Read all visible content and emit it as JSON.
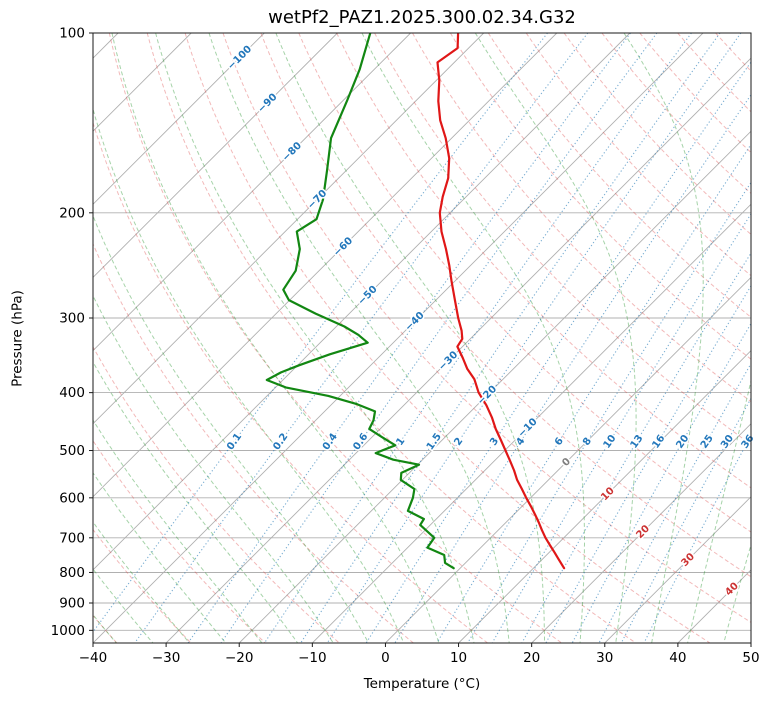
{
  "chart_data": {
    "type": "line",
    "variant": "skew-T log-P thermodynamic diagram",
    "title": "wetPf2_PAZ1.2025.300.02.34.G32",
    "xlabel": "Temperature (°C)",
    "ylabel": "Pressure (hPa)",
    "xlim": [
      -40,
      50
    ],
    "x_ticks": [
      -40,
      -30,
      -20,
      -10,
      0,
      10,
      20,
      30,
      40,
      50
    ],
    "p_lim": [
      1050,
      100
    ],
    "p_ticks": [
      100,
      200,
      300,
      400,
      500,
      600,
      700,
      800,
      900,
      1000
    ],
    "skew_deg": 45,
    "grid": true,
    "grid_color": "#b0b0b0",
    "series": [
      {
        "name": "temperature",
        "color": "#e01717",
        "width": 2.2,
        "points": [
          [
            100,
            -73.5
          ],
          [
            106,
            -71.5
          ],
          [
            112,
            -72.3
          ],
          [
            120,
            -69.6
          ],
          [
            130,
            -66.9
          ],
          [
            140,
            -64.0
          ],
          [
            150,
            -60.8
          ],
          [
            162,
            -57.6
          ],
          [
            175,
            -55.0
          ],
          [
            188,
            -53.2
          ],
          [
            200,
            -51.4
          ],
          [
            215,
            -48.6
          ],
          [
            230,
            -45.6
          ],
          [
            245,
            -42.9
          ],
          [
            260,
            -40.5
          ],
          [
            280,
            -37.4
          ],
          [
            300,
            -34.5
          ],
          [
            315,
            -32.3
          ],
          [
            325,
            -31.1
          ],
          [
            335,
            -30.7
          ],
          [
            350,
            -28.4
          ],
          [
            365,
            -26.3
          ],
          [
            380,
            -23.9
          ],
          [
            400,
            -21.5
          ],
          [
            420,
            -18.7
          ],
          [
            440,
            -16.3
          ],
          [
            460,
            -14.2
          ],
          [
            480,
            -12.0
          ],
          [
            500,
            -9.9
          ],
          [
            520,
            -7.9
          ],
          [
            540,
            -6.0
          ],
          [
            560,
            -4.3
          ],
          [
            580,
            -2.4
          ],
          [
            600,
            -0.6
          ],
          [
            620,
            1.2
          ],
          [
            640,
            2.9
          ],
          [
            660,
            4.5
          ],
          [
            680,
            6.0
          ],
          [
            700,
            7.5
          ],
          [
            720,
            9.1
          ],
          [
            740,
            10.7
          ],
          [
            760,
            12.2
          ],
          [
            787,
            14.2
          ]
        ]
      },
      {
        "name": "dewpoint",
        "color": "#128712",
        "width": 2.2,
        "points": [
          [
            100,
            -85.5
          ],
          [
            115,
            -82.0
          ],
          [
            130,
            -79.4
          ],
          [
            150,
            -76.5
          ],
          [
            170,
            -72.6
          ],
          [
            190,
            -69.2
          ],
          [
            205,
            -67.4
          ],
          [
            215,
            -68.4
          ],
          [
            230,
            -65.6
          ],
          [
            250,
            -63.2
          ],
          [
            269,
            -62.3
          ],
          [
            280,
            -60.1
          ],
          [
            295,
            -54.6
          ],
          [
            310,
            -48.9
          ],
          [
            320,
            -45.9
          ],
          [
            330,
            -43.5
          ],
          [
            345,
            -47.1
          ],
          [
            360,
            -49.8
          ],
          [
            370,
            -51.3
          ],
          [
            381,
            -52.2
          ],
          [
            392,
            -48.6
          ],
          [
            405,
            -41.6
          ],
          [
            418,
            -36.6
          ],
          [
            430,
            -33.1
          ],
          [
            445,
            -32.1
          ],
          [
            460,
            -31.5
          ],
          [
            475,
            -28.6
          ],
          [
            490,
            -25.7
          ],
          [
            505,
            -27.3
          ],
          [
            518,
            -24.0
          ],
          [
            528,
            -19.8
          ],
          [
            545,
            -21.1
          ],
          [
            560,
            -20.2
          ],
          [
            580,
            -17.1
          ],
          [
            600,
            -16.1
          ],
          [
            631,
            -15.0
          ],
          [
            651,
            -11.7
          ],
          [
            666,
            -11.4
          ],
          [
            700,
            -7.7
          ],
          [
            727,
            -7.3
          ],
          [
            748,
            -4.0
          ],
          [
            771,
            -2.8
          ],
          [
            787,
            -0.9
          ]
        ]
      }
    ],
    "isotherms": {
      "min": -160,
      "max": 50,
      "step": 10,
      "color": "#b0b0b0"
    },
    "isotherm_labels": {
      "color_negative": "#2277bb",
      "color_zero": "#808080",
      "color_positive": "#cc3333",
      "items": [
        {
          "T": -100,
          "p": 110
        },
        {
          "T": -90,
          "p": 131
        },
        {
          "T": -80,
          "p": 158
        },
        {
          "T": -70,
          "p": 190
        },
        {
          "T": -60,
          "p": 228
        },
        {
          "T": -50,
          "p": 275
        },
        {
          "T": -40,
          "p": 304
        },
        {
          "T": -30,
          "p": 354
        },
        {
          "T": -20,
          "p": 404
        },
        {
          "T": -10,
          "p": 458
        },
        {
          "T": 0,
          "p": 523
        },
        {
          "T": 10,
          "p": 591
        },
        {
          "T": 20,
          "p": 684
        },
        {
          "T": 30,
          "p": 762
        },
        {
          "T": 40,
          "p": 853
        }
      ]
    },
    "dry_adiabats": {
      "theta_min": -50,
      "theta_max": 190,
      "step": 10,
      "color": "rgba(222,70,70,0.38)"
    },
    "moist_adiabats": {
      "t0_min": -60,
      "t0_max": 50,
      "step": 5,
      "color": "rgba(44,150,50,0.42)"
    },
    "mixing_ratio": {
      "values": [
        0.1,
        0.2,
        0.4,
        0.6,
        1,
        1.5,
        2,
        3,
        4,
        6,
        8,
        10,
        13,
        16,
        20,
        25,
        30,
        36
      ],
      "color": "rgba(31,119,180,0.6)",
      "label_color": "#2277bb",
      "label_p": 483
    }
  }
}
